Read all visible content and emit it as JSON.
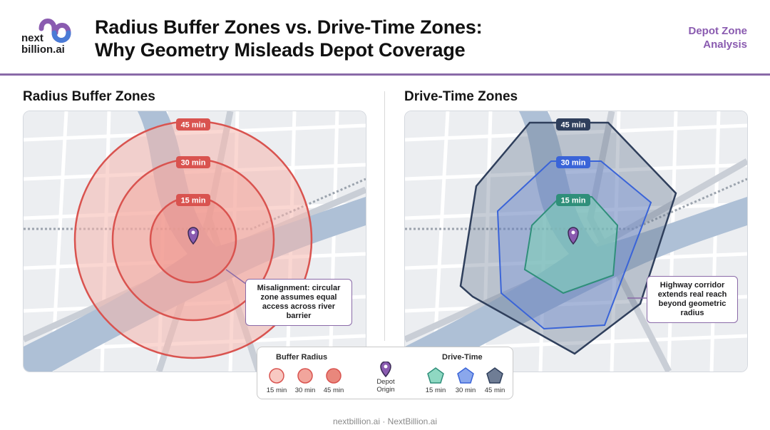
{
  "brand": {
    "logo_text_line1": "next",
    "logo_text_line2": "billion.ai",
    "color": "#8a5bb0"
  },
  "header": {
    "title_line1": "Radius Buffer Zones vs. Drive-Time Zones:",
    "title_line2": "Why Geometry Misleads Depot Coverage",
    "tag_line1": "Depot Zone",
    "tag_line2": "Analysis"
  },
  "left_panel": {
    "title": "Radius Buffer Zones",
    "ring_labels": [
      "45 min",
      "30 min",
      "15 min"
    ],
    "callout": [
      "Misalignment: circular",
      "zone assumes equal",
      "access across river",
      "barrier"
    ],
    "colors": {
      "ring": "#d9534f",
      "fill": "#f3a39b"
    }
  },
  "right_panel": {
    "title": "Drive-Time Zones",
    "ring_labels": [
      "45 min",
      "30 min",
      "15 min"
    ],
    "callout": [
      "Highway corridor",
      "extends real reach",
      "beyond geometric",
      "radius"
    ],
    "colors": {
      "z45": "#2f3f5c",
      "z30": "#3a64d8",
      "z15": "#2f8f7a"
    }
  },
  "legend": {
    "buffer_heading": "Buffer Radius",
    "buffer_items": [
      "15 min",
      "30 min",
      "45 min"
    ],
    "depot_label_line1": "Depot",
    "depot_label_line2": "Origin",
    "drive_heading": "Drive-Time",
    "drive_items": [
      "15 min",
      "30 min",
      "45 min"
    ]
  },
  "footer": {
    "text": "nextbillion.ai · NextBillion.ai"
  }
}
